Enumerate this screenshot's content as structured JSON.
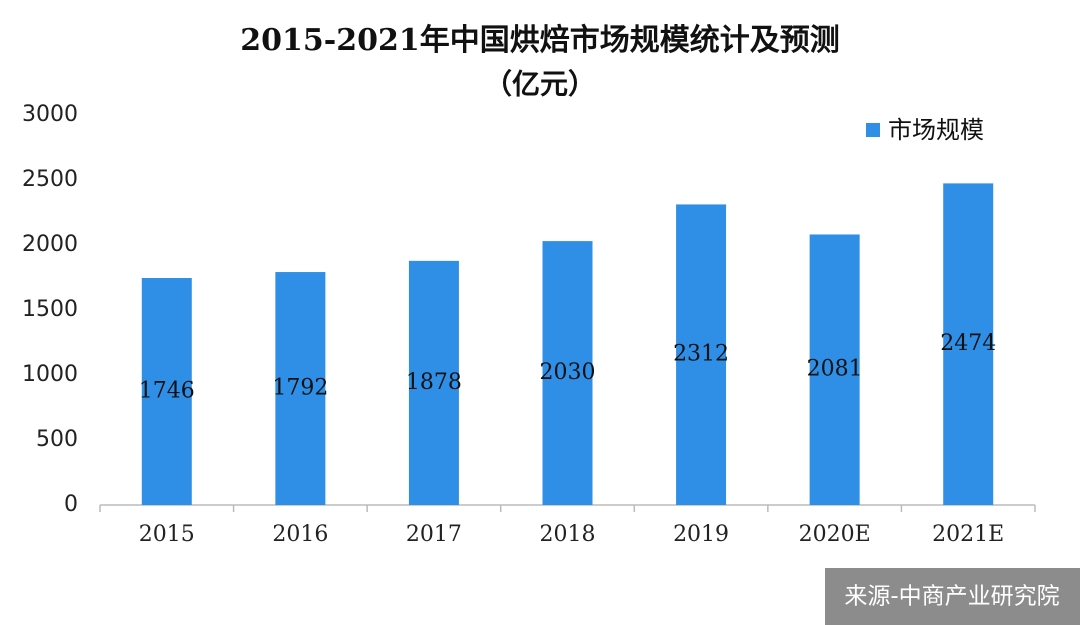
{
  "chart_data": {
    "type": "bar",
    "title": "2015-2021年中国烘焙市场规模统计及预测",
    "subtitle": "（亿元）",
    "categories": [
      "2015",
      "2016",
      "2017",
      "2018",
      "2019",
      "2020E",
      "2021E"
    ],
    "series": [
      {
        "name": "市场规模",
        "color": "#2f8fe6",
        "values": [
          1746,
          1792,
          1878,
          2030,
          2312,
          2081,
          2474
        ]
      }
    ],
    "ylim": [
      0,
      3000
    ],
    "yticks": [
      0,
      500,
      1000,
      1500,
      2000,
      2500,
      3000
    ],
    "grid": false,
    "legend": "top-right",
    "source": "来源-中商产业研究院"
  }
}
